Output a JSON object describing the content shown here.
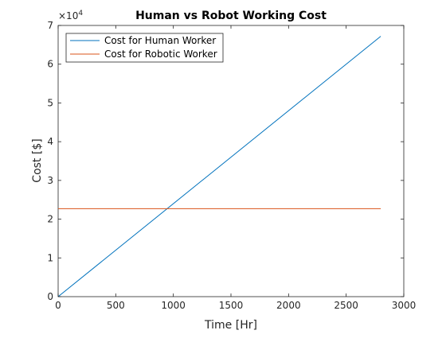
{
  "chart_data": {
    "type": "line",
    "title": "Human vs Robot Working Cost",
    "xlabel": "Time [Hr]",
    "ylabel": "Cost [$]",
    "xlim": [
      0,
      3000
    ],
    "ylim": [
      0,
      70000
    ],
    "x_ticks": [
      0,
      500,
      1000,
      1500,
      2000,
      2500,
      3000
    ],
    "y_ticks": [
      0,
      1,
      2,
      3,
      4,
      5,
      6,
      7
    ],
    "y_exponent_label": "×10",
    "y_exponent_power": "4",
    "grid": false,
    "legend_position": "top-left",
    "series": [
      {
        "name": "Cost for Human Worker",
        "color": "#0072BD",
        "x": [
          0,
          2800
        ],
        "y": [
          0,
          67200
        ]
      },
      {
        "name": "Cost for Robotic Worker",
        "color": "#D95319",
        "x": [
          0,
          2800
        ],
        "y": [
          22700,
          22700
        ]
      }
    ]
  }
}
